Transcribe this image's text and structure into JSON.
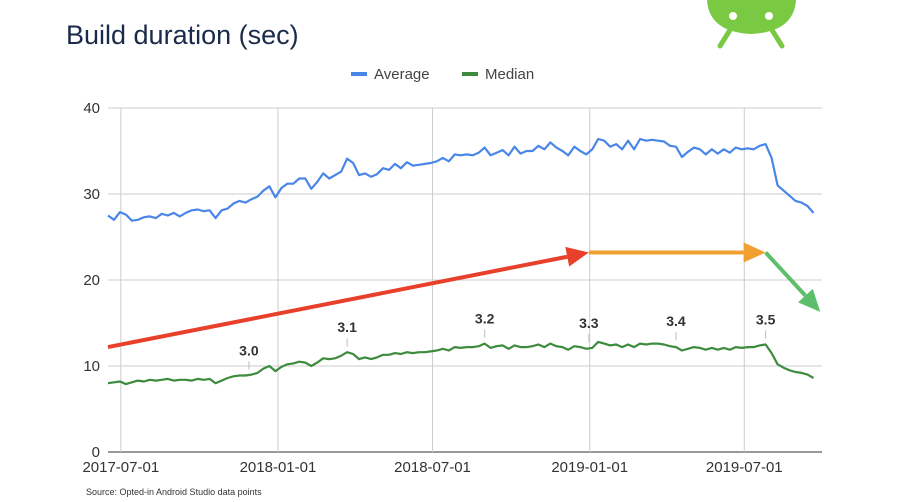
{
  "title": "Build duration (sec)",
  "source": "Source: Opted-in Android Studio data points",
  "logo_icon": "android-robot-icon",
  "colors": {
    "average": "#4a86e8",
    "median": "#3d8b3d",
    "grid": "#cccccc",
    "arrow_red": "#e8402a",
    "arrow_orange": "#f0a030",
    "arrow_green": "#5cbf6a",
    "android": "#7ac943"
  },
  "chart_data": {
    "type": "line",
    "x_start": "2017-06-16",
    "x_end": "2019-09-30",
    "ylim": [
      0,
      40
    ],
    "yticks": [
      "0",
      "10",
      "20",
      "30",
      "40"
    ],
    "xticks": [
      {
        "label": "2017-07-01",
        "date": "2017-07-01"
      },
      {
        "label": "2018-01-01",
        "date": "2018-01-01"
      },
      {
        "label": "2018-07-01",
        "date": "2018-07-01"
      },
      {
        "label": "2019-01-01",
        "date": "2019-01-01"
      },
      {
        "label": "2019-07-01",
        "date": "2019-07-01"
      }
    ],
    "legend": {
      "position": "top",
      "entries": [
        "Average",
        "Median"
      ]
    },
    "grid": true,
    "series": [
      {
        "name": "Average",
        "points": [
          [
            "2017-06-16",
            27.5
          ],
          [
            "2017-06-23",
            27.0
          ],
          [
            "2017-06-30",
            27.9
          ],
          [
            "2017-07-07",
            27.6
          ],
          [
            "2017-07-14",
            26.9
          ],
          [
            "2017-07-21",
            27.0
          ],
          [
            "2017-07-28",
            27.3
          ],
          [
            "2017-08-04",
            27.4
          ],
          [
            "2017-08-11",
            27.2
          ],
          [
            "2017-08-18",
            27.7
          ],
          [
            "2017-08-25",
            27.5
          ],
          [
            "2017-09-01",
            27.8
          ],
          [
            "2017-09-08",
            27.4
          ],
          [
            "2017-09-15",
            27.8
          ],
          [
            "2017-09-22",
            28.1
          ],
          [
            "2017-09-29",
            28.2
          ],
          [
            "2017-10-06",
            28.0
          ],
          [
            "2017-10-13",
            28.1
          ],
          [
            "2017-10-20",
            27.2
          ],
          [
            "2017-10-27",
            28.1
          ],
          [
            "2017-11-03",
            28.3
          ],
          [
            "2017-11-10",
            28.9
          ],
          [
            "2017-11-17",
            29.2
          ],
          [
            "2017-11-24",
            29.0
          ],
          [
            "2017-12-01",
            29.4
          ],
          [
            "2017-12-08",
            29.7
          ],
          [
            "2017-12-15",
            30.4
          ],
          [
            "2017-12-22",
            30.9
          ],
          [
            "2017-12-29",
            29.6
          ],
          [
            "2018-01-05",
            30.7
          ],
          [
            "2018-01-12",
            31.2
          ],
          [
            "2018-01-19",
            31.2
          ],
          [
            "2018-01-26",
            31.8
          ],
          [
            "2018-02-02",
            31.8
          ],
          [
            "2018-02-09",
            30.6
          ],
          [
            "2018-02-16",
            31.4
          ],
          [
            "2018-02-23",
            32.4
          ],
          [
            "2018-03-02",
            31.8
          ],
          [
            "2018-03-09",
            32.2
          ],
          [
            "2018-03-16",
            32.6
          ],
          [
            "2018-03-23",
            34.1
          ],
          [
            "2018-03-30",
            33.6
          ],
          [
            "2018-04-06",
            32.2
          ],
          [
            "2018-04-13",
            32.4
          ],
          [
            "2018-04-20",
            32.0
          ],
          [
            "2018-04-27",
            32.3
          ],
          [
            "2018-05-04",
            33.0
          ],
          [
            "2018-05-11",
            32.8
          ],
          [
            "2018-05-18",
            33.5
          ],
          [
            "2018-05-25",
            33.0
          ],
          [
            "2018-06-01",
            33.7
          ],
          [
            "2018-06-08",
            33.3
          ],
          [
            "2018-06-15",
            33.4
          ],
          [
            "2018-06-22",
            33.5
          ],
          [
            "2018-06-29",
            33.6
          ],
          [
            "2018-07-06",
            33.8
          ],
          [
            "2018-07-13",
            34.2
          ],
          [
            "2018-07-20",
            33.8
          ],
          [
            "2018-07-27",
            34.6
          ],
          [
            "2018-08-03",
            34.5
          ],
          [
            "2018-08-10",
            34.6
          ],
          [
            "2018-08-17",
            34.5
          ],
          [
            "2018-08-24",
            34.8
          ],
          [
            "2018-08-31",
            35.4
          ],
          [
            "2018-09-07",
            34.5
          ],
          [
            "2018-09-14",
            34.8
          ],
          [
            "2018-09-21",
            35.1
          ],
          [
            "2018-09-28",
            34.5
          ],
          [
            "2018-10-05",
            35.5
          ],
          [
            "2018-10-12",
            34.7
          ],
          [
            "2018-10-19",
            35.0
          ],
          [
            "2018-10-26",
            35.0
          ],
          [
            "2018-11-02",
            35.6
          ],
          [
            "2018-11-09",
            35.2
          ],
          [
            "2018-11-16",
            36.0
          ],
          [
            "2018-11-23",
            35.4
          ],
          [
            "2018-11-30",
            35.0
          ],
          [
            "2018-12-07",
            34.5
          ],
          [
            "2018-12-14",
            35.5
          ],
          [
            "2018-12-21",
            35.0
          ],
          [
            "2018-12-28",
            34.6
          ],
          [
            "2019-01-04",
            35.2
          ],
          [
            "2019-01-11",
            36.4
          ],
          [
            "2019-01-18",
            36.2
          ],
          [
            "2019-01-25",
            35.5
          ],
          [
            "2019-02-01",
            35.8
          ],
          [
            "2019-02-08",
            35.2
          ],
          [
            "2019-02-15",
            36.2
          ],
          [
            "2019-02-22",
            35.2
          ],
          [
            "2019-03-01",
            36.4
          ],
          [
            "2019-03-08",
            36.2
          ],
          [
            "2019-03-15",
            36.3
          ],
          [
            "2019-03-22",
            36.2
          ],
          [
            "2019-03-29",
            36.1
          ],
          [
            "2019-04-05",
            35.6
          ],
          [
            "2019-04-12",
            35.5
          ],
          [
            "2019-04-19",
            34.3
          ],
          [
            "2019-04-26",
            34.9
          ],
          [
            "2019-05-03",
            35.4
          ],
          [
            "2019-05-10",
            35.2
          ],
          [
            "2019-05-17",
            34.6
          ],
          [
            "2019-05-24",
            35.2
          ],
          [
            "2019-05-31",
            34.7
          ],
          [
            "2019-06-07",
            35.2
          ],
          [
            "2019-06-14",
            34.8
          ],
          [
            "2019-06-21",
            35.4
          ],
          [
            "2019-06-28",
            35.2
          ],
          [
            "2019-07-05",
            35.3
          ],
          [
            "2019-07-12",
            35.2
          ],
          [
            "2019-07-19",
            35.6
          ],
          [
            "2019-07-26",
            35.8
          ],
          [
            "2019-08-02",
            34.2
          ],
          [
            "2019-08-09",
            31.0
          ],
          [
            "2019-08-16",
            30.4
          ],
          [
            "2019-08-23",
            29.8
          ],
          [
            "2019-08-30",
            29.2
          ],
          [
            "2019-09-06",
            29.0
          ],
          [
            "2019-09-13",
            28.6
          ],
          [
            "2019-09-20",
            27.8
          ]
        ]
      },
      {
        "name": "Median",
        "points": [
          [
            "2017-06-16",
            8.0
          ],
          [
            "2017-06-23",
            8.1
          ],
          [
            "2017-06-30",
            8.2
          ],
          [
            "2017-07-07",
            7.9
          ],
          [
            "2017-07-14",
            8.1
          ],
          [
            "2017-07-21",
            8.3
          ],
          [
            "2017-07-28",
            8.2
          ],
          [
            "2017-08-04",
            8.4
          ],
          [
            "2017-08-11",
            8.3
          ],
          [
            "2017-08-18",
            8.4
          ],
          [
            "2017-08-25",
            8.5
          ],
          [
            "2017-09-01",
            8.3
          ],
          [
            "2017-09-08",
            8.4
          ],
          [
            "2017-09-15",
            8.4
          ],
          [
            "2017-09-22",
            8.3
          ],
          [
            "2017-09-29",
            8.5
          ],
          [
            "2017-10-06",
            8.4
          ],
          [
            "2017-10-13",
            8.5
          ],
          [
            "2017-10-20",
            8.0
          ],
          [
            "2017-10-27",
            8.3
          ],
          [
            "2017-11-03",
            8.6
          ],
          [
            "2017-11-10",
            8.8
          ],
          [
            "2017-11-17",
            8.9
          ],
          [
            "2017-11-24",
            8.9
          ],
          [
            "2017-12-01",
            9.0
          ],
          [
            "2017-12-08",
            9.2
          ],
          [
            "2017-12-15",
            9.7
          ],
          [
            "2017-12-22",
            10.0
          ],
          [
            "2017-12-29",
            9.4
          ],
          [
            "2018-01-05",
            9.9
          ],
          [
            "2018-01-12",
            10.2
          ],
          [
            "2018-01-19",
            10.3
          ],
          [
            "2018-01-26",
            10.5
          ],
          [
            "2018-02-02",
            10.4
          ],
          [
            "2018-02-09",
            10.0
          ],
          [
            "2018-02-16",
            10.4
          ],
          [
            "2018-02-23",
            10.9
          ],
          [
            "2018-03-02",
            10.8
          ],
          [
            "2018-03-09",
            10.9
          ],
          [
            "2018-03-16",
            11.2
          ],
          [
            "2018-03-23",
            11.6
          ],
          [
            "2018-03-30",
            11.4
          ],
          [
            "2018-04-06",
            10.8
          ],
          [
            "2018-04-13",
            11.0
          ],
          [
            "2018-04-20",
            10.8
          ],
          [
            "2018-04-27",
            11.0
          ],
          [
            "2018-05-04",
            11.3
          ],
          [
            "2018-05-11",
            11.3
          ],
          [
            "2018-05-18",
            11.5
          ],
          [
            "2018-05-25",
            11.4
          ],
          [
            "2018-06-01",
            11.6
          ],
          [
            "2018-06-08",
            11.5
          ],
          [
            "2018-06-15",
            11.6
          ],
          [
            "2018-06-22",
            11.6
          ],
          [
            "2018-06-29",
            11.7
          ],
          [
            "2018-07-06",
            11.8
          ],
          [
            "2018-07-13",
            12.0
          ],
          [
            "2018-07-20",
            11.8
          ],
          [
            "2018-07-27",
            12.2
          ],
          [
            "2018-08-03",
            12.1
          ],
          [
            "2018-08-10",
            12.2
          ],
          [
            "2018-08-17",
            12.2
          ],
          [
            "2018-08-24",
            12.3
          ],
          [
            "2018-08-31",
            12.6
          ],
          [
            "2018-09-07",
            12.1
          ],
          [
            "2018-09-14",
            12.3
          ],
          [
            "2018-09-21",
            12.4
          ],
          [
            "2018-09-28",
            12.0
          ],
          [
            "2018-10-05",
            12.4
          ],
          [
            "2018-10-12",
            12.2
          ],
          [
            "2018-10-19",
            12.2
          ],
          [
            "2018-10-26",
            12.3
          ],
          [
            "2018-11-02",
            12.5
          ],
          [
            "2018-11-09",
            12.2
          ],
          [
            "2018-11-16",
            12.6
          ],
          [
            "2018-11-23",
            12.3
          ],
          [
            "2018-11-30",
            12.2
          ],
          [
            "2018-12-07",
            11.9
          ],
          [
            "2018-12-14",
            12.3
          ],
          [
            "2018-12-21",
            12.2
          ],
          [
            "2018-12-28",
            12.0
          ],
          [
            "2019-01-04",
            12.1
          ],
          [
            "2019-01-11",
            12.8
          ],
          [
            "2019-01-18",
            12.6
          ],
          [
            "2019-01-25",
            12.4
          ],
          [
            "2019-02-01",
            12.5
          ],
          [
            "2019-02-08",
            12.2
          ],
          [
            "2019-02-15",
            12.5
          ],
          [
            "2019-02-22",
            12.2
          ],
          [
            "2019-03-01",
            12.6
          ],
          [
            "2019-03-08",
            12.5
          ],
          [
            "2019-03-15",
            12.6
          ],
          [
            "2019-03-22",
            12.6
          ],
          [
            "2019-03-29",
            12.5
          ],
          [
            "2019-04-05",
            12.3
          ],
          [
            "2019-04-12",
            12.2
          ],
          [
            "2019-04-19",
            11.8
          ],
          [
            "2019-04-26",
            12.0
          ],
          [
            "2019-05-03",
            12.2
          ],
          [
            "2019-05-10",
            12.1
          ],
          [
            "2019-05-17",
            11.9
          ],
          [
            "2019-05-24",
            12.1
          ],
          [
            "2019-05-31",
            11.9
          ],
          [
            "2019-06-07",
            12.1
          ],
          [
            "2019-06-14",
            11.9
          ],
          [
            "2019-06-21",
            12.2
          ],
          [
            "2019-06-28",
            12.1
          ],
          [
            "2019-07-05",
            12.2
          ],
          [
            "2019-07-12",
            12.2
          ],
          [
            "2019-07-19",
            12.4
          ],
          [
            "2019-07-26",
            12.5
          ],
          [
            "2019-08-02",
            11.5
          ],
          [
            "2019-08-09",
            10.2
          ],
          [
            "2019-08-16",
            9.8
          ],
          [
            "2019-08-23",
            9.5
          ],
          [
            "2019-08-30",
            9.3
          ],
          [
            "2019-09-06",
            9.2
          ],
          [
            "2019-09-13",
            9.0
          ],
          [
            "2019-09-20",
            8.6
          ]
        ]
      }
    ],
    "annotations": [
      {
        "text": "3.0",
        "date": "2017-11-28",
        "y": 8.9
      },
      {
        "text": "3.1",
        "date": "2018-03-23",
        "y": 11.6
      },
      {
        "text": "3.2",
        "date": "2018-08-31",
        "y": 12.6
      },
      {
        "text": "3.3",
        "date": "2018-12-31",
        "y": 12.1
      },
      {
        "text": "3.4",
        "date": "2019-04-12",
        "y": 12.3
      },
      {
        "text": "3.5",
        "date": "2019-07-26",
        "y": 12.5
      }
    ],
    "trend_arrows": [
      {
        "color": "red",
        "from": {
          "date": "2017-06-16",
          "y": 12.2
        },
        "to": {
          "date": "2018-12-31",
          "y": 23.2
        }
      },
      {
        "color": "orange",
        "from": {
          "date": "2018-12-31",
          "y": 23.2
        },
        "to": {
          "date": "2019-07-26",
          "y": 23.2
        }
      },
      {
        "color": "green",
        "from": {
          "date": "2019-07-26",
          "y": 23.2
        },
        "to": {
          "date": "2019-09-28",
          "y": 16.3
        }
      }
    ]
  }
}
